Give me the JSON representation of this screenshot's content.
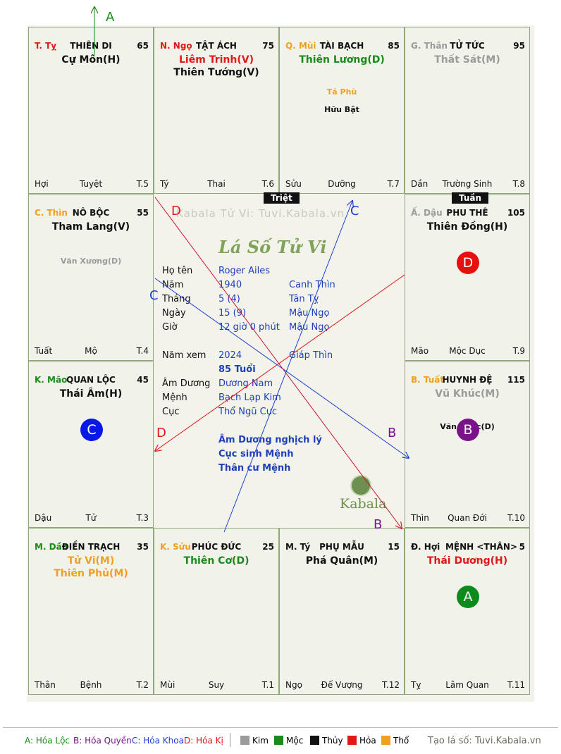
{
  "palaces": [
    {
      "id": "ty",
      "branch": "T. Tỵ",
      "branch_color": "#e01818",
      "house": "THIÊN DI",
      "num": "65",
      "main": [
        {
          "t": "Cự Môn(H)",
          "c": "#111"
        }
      ],
      "minor": [],
      "bottom": [
        "Hợi",
        "Tuyệt",
        "T.5"
      ]
    },
    {
      "id": "ngo",
      "branch": "N. Ngọ",
      "branch_color": "#e01818",
      "house": "TẬT ÁCH",
      "num": "75",
      "main": [
        {
          "t": "Liêm Trinh(V)",
          "c": "#e01818"
        },
        {
          "t": "Thiên Tướng(V)",
          "c": "#111"
        }
      ],
      "minor": [],
      "bottom": [
        "Tý",
        "Thai",
        "T.6"
      ]
    },
    {
      "id": "mui",
      "branch": "Q. Mùi",
      "branch_color": "#f0a020",
      "house": "TÀI BẠCH",
      "num": "85",
      "main": [
        {
          "t": "Thiên Lương(D)",
          "c": "#1a8a1a"
        }
      ],
      "minor": [
        {
          "t": "Tả Phù",
          "c": "#f0a020"
        },
        {
          "t": "Hữu Bật",
          "c": "#111"
        }
      ],
      "bottom": [
        "Sửu",
        "Dưỡng",
        "T.7"
      ]
    },
    {
      "id": "than",
      "branch": "G. Thân",
      "branch_color": "#9b9b9b",
      "house": "TỬ TỨC",
      "num": "95",
      "main": [
        {
          "t": "Thất Sát(M)",
          "c": "#9b9b9b"
        }
      ],
      "minor": [],
      "bottom": [
        "Dần",
        "Trường Sinh",
        "T.8"
      ]
    },
    {
      "id": "thin",
      "branch": "C. Thìn",
      "branch_color": "#f0a020",
      "house": "NÔ BỘC",
      "num": "55",
      "main": [
        {
          "t": "Tham Lang(V)",
          "c": "#111"
        }
      ],
      "minor": [
        {
          "t": "Văn Xương(D)",
          "c": "#9b9b9b"
        }
      ],
      "bottom": [
        "Tuất",
        "Mộ",
        "T.4"
      ]
    },
    {
      "id": "dau",
      "branch": "Ấ. Dậu",
      "branch_color": "#9b9b9b",
      "house": "PHU THÊ",
      "num": "105",
      "main": [
        {
          "t": "Thiên Đồng(H)",
          "c": "#111"
        }
      ],
      "minor": [],
      "bottom": [
        "Mão",
        "Mộc Dục",
        "T.9"
      ]
    },
    {
      "id": "mao",
      "branch": "K. Mão",
      "branch_color": "#1a8a1a",
      "house": "QUAN LỘC",
      "num": "45",
      "main": [
        {
          "t": "Thái Âm(H)",
          "c": "#111"
        }
      ],
      "minor": [],
      "bottom": [
        "Dậu",
        "Tử",
        "T.3"
      ]
    },
    {
      "id": "tuat",
      "branch": "B. Tuất",
      "branch_color": "#f0a020",
      "house": "HUYNH ĐỆ",
      "num": "115",
      "main": [
        {
          "t": "Vũ Khúc(M)",
          "c": "#9b9b9b"
        }
      ],
      "minor": [
        {
          "t": "Văn Khúc(D)",
          "c": "#111"
        }
      ],
      "bottom": [
        "Thìn",
        "Quan Đới",
        "T.10"
      ]
    },
    {
      "id": "dan",
      "branch": "M. Dần",
      "branch_color": "#1a8a1a",
      "house": "ĐIỀN TRẠCH",
      "num": "35",
      "main": [
        {
          "t": "Tử Vi(M)",
          "c": "#f0a020"
        },
        {
          "t": "Thiên Phủ(M)",
          "c": "#f0a020"
        }
      ],
      "minor": [],
      "bottom": [
        "Thân",
        "Bệnh",
        "T.2"
      ]
    },
    {
      "id": "suu",
      "branch": "K. Sửu",
      "branch_color": "#f0a020",
      "house": "PHÚC ĐỨC",
      "num": "25",
      "main": [
        {
          "t": "Thiên Cơ(D)",
          "c": "#1a8a1a"
        }
      ],
      "minor": [],
      "bottom": [
        "Mùi",
        "Suy",
        "T.1"
      ]
    },
    {
      "id": "tyy",
      "branch": "M. Tý",
      "branch_color": "#111",
      "house": "PHỤ MẪU",
      "num": "15",
      "main": [
        {
          "t": "Phá Quân(M)",
          "c": "#111"
        }
      ],
      "minor": [],
      "bottom": [
        "Ngọ",
        "Đế Vượng",
        "T.12"
      ]
    },
    {
      "id": "hoi",
      "branch": "Đ. Hợi",
      "branch_color": "#111",
      "house": "MỆNH <THÂN>",
      "num": "5",
      "main": [
        {
          "t": "Thái Dương(H)",
          "c": "#e01818"
        }
      ],
      "minor": [],
      "bottom": [
        "Tỵ",
        "Lâm Quan",
        "T.11"
      ]
    }
  ],
  "badges": [
    {
      "palace": "dau",
      "letter": "D",
      "color": "#e61010"
    },
    {
      "palace": "mao",
      "letter": "C",
      "color": "#0a18e6"
    },
    {
      "palace": "tuat",
      "letter": "B",
      "color": "#7a1289"
    },
    {
      "palace": "hoi",
      "letter": "A",
      "color": "#0c8a1c"
    }
  ],
  "tags": {
    "triet": "Triệt",
    "tuan": "Tuần"
  },
  "watermark": "Kabala Tử Vi: Tuvi.Kabala.vn",
  "center_title": "Lá Số Tử Vi",
  "logo_text": "Kabala",
  "info": {
    "ho_ten_label": "Họ tên",
    "ho_ten": "Roger Ailes",
    "nam_label": "Năm",
    "nam": "1940",
    "nam_can": "Canh Thìn",
    "thang_label": "Tháng",
    "thang": "5  (4)",
    "thang_can": "Tân Tỵ",
    "ngay_label": "Ngày",
    "ngay": "15  (9)",
    "ngay_can": "Mậu Ngọ",
    "gio_label": "Giờ",
    "gio": "12 giờ 0 phút",
    "gio_can": "Mậu Ngọ",
    "nam_xem_label": "Năm xem",
    "nam_xem": "2024",
    "nam_xem_can": "Giáp Thìn",
    "tuoi": "85 Tuổi",
    "am_duong_label": "Âm Dương",
    "am_duong": "Dương Nam",
    "menh_label": "Mệnh",
    "menh": "Bạch Lạp Kim",
    "cuc_label": "Cục",
    "cuc": "Thổ Ngũ Cục",
    "note1": "Âm Dương nghịch lý",
    "note2": "Cục sinh Mệnh",
    "note3": "Thân cư Mệnh"
  },
  "arrow_labels": {
    "a": "A",
    "b1": "B",
    "b2": "B",
    "c1": "C",
    "c2": "C",
    "d1": "D",
    "d2": "D"
  },
  "arrow_colors": {
    "a": "#1a8a1a",
    "b": "#7a1289",
    "c": "#1f3fd0",
    "d": "#e01818"
  },
  "legend": {
    "hoa_loc": "A: Hóa Lộc",
    "hoa_quyen": "B: Hóa Quyền",
    "hoa_khoa": "C: Hóa Khoa",
    "hoa_ki": "D: Hóa Kị",
    "kim": "Kim",
    "moc": "Mộc",
    "thuy": "Thủy",
    "hoa": "Hỏa",
    "tho": "Thổ",
    "credit": "Tạo lá số: Tuvi.Kabala.vn"
  }
}
